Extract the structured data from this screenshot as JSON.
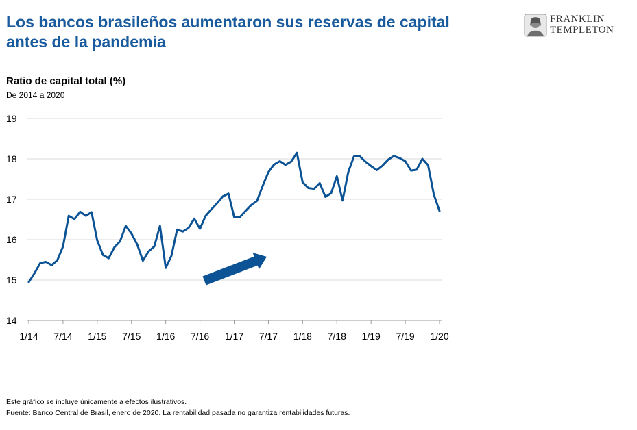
{
  "header": {
    "title_line1": "Los bancos brasileños aumentaron sus reservas de capital",
    "title_line2": "antes de la pandemia"
  },
  "logo": {
    "line1": "FRANKLIN",
    "line2": "TEMPLETON",
    "icon": "franklin-portrait-icon"
  },
  "colors": {
    "title": "#1a5b9e",
    "series": "#0b5394",
    "arrow": "#0b5394",
    "grid": "#d9d9d9"
  },
  "chart_data": {
    "type": "line",
    "title": "Ratio de capital total (%)",
    "subtitle": "De 2014 a 2020",
    "ylim": [
      14,
      19
    ],
    "yticks": [
      14,
      15,
      16,
      17,
      18,
      19
    ],
    "xticks": [
      "1/14",
      "7/14",
      "1/15",
      "7/15",
      "1/16",
      "7/16",
      "1/17",
      "7/17",
      "1/18",
      "7/18",
      "1/19",
      "7/19",
      "1/20"
    ],
    "grid": "horizontal",
    "annotation": "upward-trend-arrow",
    "series": [
      {
        "values": [
          14.95,
          15.17,
          15.42,
          15.45,
          15.37,
          15.49,
          15.83,
          16.59,
          16.51,
          16.69,
          16.59,
          16.68,
          15.98,
          15.62,
          15.54,
          15.81,
          15.96,
          16.34,
          16.15,
          15.88,
          15.48,
          15.71,
          15.83,
          16.34,
          15.3,
          15.6,
          16.25,
          16.2,
          16.29,
          16.52,
          16.27,
          16.59,
          16.75,
          16.9,
          17.07,
          17.14,
          16.56,
          16.56,
          16.71,
          16.86,
          16.96,
          17.33,
          17.67,
          17.86,
          17.94,
          17.85,
          17.93,
          18.15,
          17.42,
          17.28,
          17.26,
          17.4,
          17.06,
          17.15,
          17.57,
          16.97,
          17.67,
          18.06,
          18.07,
          17.93,
          17.82,
          17.72,
          17.83,
          17.98,
          18.07,
          18.02,
          17.94,
          17.71,
          17.73,
          18.0,
          17.84,
          17.12,
          16.71
        ]
      }
    ]
  },
  "footer": {
    "note": "Este gráfico se incluye únicamente a efectos ilustrativos.",
    "source": "Fuente: Banco Central de Brasil, enero de 2020. La rentabilidad pasada no garantiza rentabilidades futuras."
  }
}
